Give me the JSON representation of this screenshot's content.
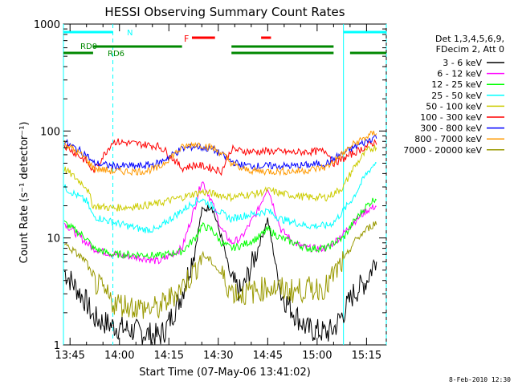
{
  "chart_data": {
    "type": "line",
    "title": "HESSI Observing Summary Count Rates",
    "xlabel": "Start Time (07-May-06 13:41:02)",
    "ylabel": "Count Rate (s⁻¹ detector⁻¹)",
    "y_scale": "log",
    "ylim": [
      1,
      1000
    ],
    "xlim_minutes": [
      -2,
      96
    ],
    "x_ticks": [
      "13:45",
      "14:00",
      "14:15",
      "14:30",
      "14:45",
      "15:00",
      "15:15"
    ],
    "y_ticks": [
      "1",
      "10",
      "100",
      "1000"
    ],
    "legend_header": [
      "Det 1,3,4,5,6,9,",
      "FDecim 2, Att 0"
    ],
    "legend_position": "right",
    "footer": "8-Feb-2010 12:30",
    "flag_labels": {
      "N": "N",
      "RD0": "RD0",
      "RD6": "RD6",
      "F": "F"
    },
    "night_spans_minutes": [
      [
        -2,
        13
      ],
      [
        83,
        96
      ]
    ],
    "rd0_spans_minutes": [
      [
        7,
        34
      ],
      [
        49,
        80
      ]
    ],
    "rd6_spans_minutes": [
      [
        -2,
        7
      ],
      [
        49,
        80
      ],
      [
        85,
        96
      ]
    ],
    "flare_spans_minutes": [
      [
        37,
        44
      ],
      [
        58,
        61
      ]
    ],
    "x_minutes": [
      -2,
      5,
      7,
      13,
      22,
      27,
      29,
      34,
      38,
      40,
      43,
      46,
      49,
      52,
      57,
      60,
      64,
      68,
      72,
      78,
      80,
      83,
      86,
      90,
      93,
      94
    ],
    "series": [
      {
        "name": "3 - 6 keV",
        "color": "#000000",
        "values": [
          5,
          2.5,
          1.8,
          1.5,
          1.3,
          1.2,
          1.4,
          3,
          8,
          18,
          20,
          10,
          4,
          3,
          8,
          15,
          3,
          2,
          1.4,
          1.3,
          1.4,
          2,
          3,
          4,
          6.5,
          6.5
        ]
      },
      {
        "name": "6 - 12 keV",
        "color": "#ff00ff",
        "values": [
          14,
          9,
          8,
          7,
          6.5,
          6,
          6.5,
          8,
          20,
          35,
          22,
          12,
          9,
          10,
          18,
          30,
          12,
          9,
          8,
          8,
          9,
          11,
          14,
          18,
          20,
          20
        ]
      },
      {
        "name": "12 - 25 keV",
        "color": "#00ff00",
        "values": [
          14,
          10,
          8,
          7,
          7,
          6.8,
          7,
          7.5,
          10,
          13,
          12,
          9,
          8,
          8.5,
          10,
          12,
          10,
          9,
          8,
          8,
          9,
          10,
          14,
          20,
          24,
          22
        ]
      },
      {
        "name": "25 - 50 keV",
        "color": "#00ffff",
        "values": [
          30,
          22,
          16,
          14,
          12,
          12,
          14,
          18,
          22,
          23,
          20,
          17,
          15,
          16,
          17,
          18,
          15,
          14,
          13,
          13,
          14,
          18,
          24,
          40,
          52,
          52
        ]
      },
      {
        "name": "50 - 100 keV",
        "color": "#cccc00",
        "values": [
          45,
          30,
          20,
          19,
          20,
          21,
          22,
          24,
          26,
          27,
          26,
          25,
          24,
          25,
          26,
          28,
          26,
          25,
          24,
          24,
          26,
          30,
          45,
          65,
          72,
          70
        ]
      },
      {
        "name": "100 - 300 keV",
        "color": "#ff0000",
        "values": [
          75,
          52,
          42,
          80,
          75,
          72,
          65,
          45,
          48,
          47,
          45,
          42,
          68,
          65,
          64,
          65,
          64,
          63,
          64,
          65,
          50,
          55,
          62,
          72,
          80,
          78
        ]
      },
      {
        "name": "300 - 800 keV",
        "color": "#0000ff",
        "values": [
          80,
          60,
          50,
          47,
          47,
          50,
          55,
          68,
          72,
          70,
          68,
          60,
          52,
          48,
          47,
          47,
          47,
          47,
          48,
          50,
          55,
          62,
          70,
          80,
          90,
          88
        ]
      },
      {
        "name": "800 - 7000 keV",
        "color": "#ff9900",
        "values": [
          78,
          55,
          45,
          42,
          42,
          45,
          52,
          70,
          76,
          74,
          70,
          62,
          50,
          44,
          42,
          42,
          42,
          42,
          43,
          46,
          52,
          62,
          75,
          88,
          98,
          96
        ]
      },
      {
        "name": "7000 - 20000 keV",
        "color": "#999900",
        "values": [
          9,
          6,
          4,
          2.5,
          2.2,
          2.2,
          2.5,
          3.5,
          5,
          7,
          6,
          4.5,
          3.2,
          3,
          3.2,
          3.5,
          3.3,
          3.2,
          3.3,
          3.5,
          4.5,
          6,
          9,
          12,
          14,
          14
        ]
      }
    ]
  }
}
